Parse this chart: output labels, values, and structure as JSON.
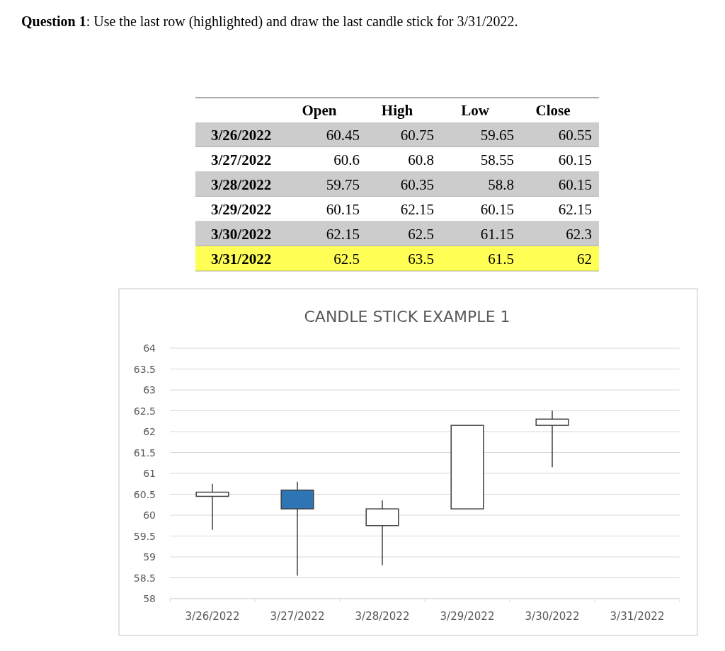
{
  "chart_data": {
    "type": "candlestick",
    "title": "CANDLE STICK EXAMPLE 1",
    "categories": [
      "3/26/2022",
      "3/27/2022",
      "3/28/2022",
      "3/29/2022",
      "3/30/2022",
      "3/31/2022"
    ],
    "ohlc": [
      [
        60.45,
        60.75,
        59.65,
        60.55
      ],
      [
        60.6,
        60.8,
        58.55,
        60.15
      ],
      [
        59.75,
        60.35,
        58.8,
        60.15
      ],
      [
        60.15,
        62.15,
        60.15,
        62.15
      ],
      [
        62.15,
        62.5,
        61.15,
        62.3
      ],
      null
    ],
    "colors": [
      "#ffffff",
      "#2e75b6",
      "#ffffff",
      "#ffffff",
      "#ffffff",
      null
    ],
    "ylim": [
      58,
      64
    ],
    "yticks": [
      58,
      58.5,
      59,
      59.5,
      60,
      60.5,
      61,
      61.5,
      62,
      62.5,
      63,
      63.5,
      64
    ],
    "grid": "y",
    "value_labels": [
      [
        "60.45",
        "60.75",
        "59.65",
        "60.55"
      ],
      [
        "60.6",
        "60.8",
        "58.55",
        "60.15"
      ],
      [
        "59.75",
        "60.35",
        "58.8",
        "60.15"
      ],
      [
        "60.15",
        "62.15",
        "60.15",
        "62.15"
      ],
      [
        "62.15",
        "62.5",
        "61.15",
        "62.3"
      ],
      [
        "62.5",
        "63.5",
        "61.5",
        "62"
      ]
    ],
    "annotations": [
      "Question 1: Use the last row (highlighted) and draw the last candle stick for 3/31/2022.",
      "Open",
      "High",
      "Low",
      "Close"
    ]
  }
}
